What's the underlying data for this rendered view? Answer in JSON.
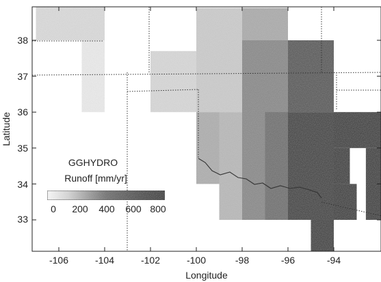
{
  "map": {
    "title": "GGHYDRO",
    "legend_title": "Runoff [mm/yr]",
    "legend_ticks": [
      "0",
      "200",
      "400",
      "600",
      "800"
    ],
    "xlabel": "Longitude",
    "ylabel": "Latitude",
    "x_ticks": [
      "-106",
      "-104",
      "-102",
      "-100",
      "-98",
      "-96",
      "-94"
    ],
    "y_ticks": [
      "33",
      "34",
      "35",
      "36",
      "37",
      "38"
    ],
    "lon_range": [
      -107,
      -91.8
    ],
    "lat_range": [
      32.1,
      38.9
    ],
    "runoff_range_mm_per_yr": [
      0,
      800
    ],
    "colors": {
      "low": "#ffffff",
      "high": "#1a1a1a"
    }
  },
  "chart_data": {
    "type": "heatmap",
    "title": "GGHYDRO",
    "xlabel": "Longitude",
    "ylabel": "Latitude",
    "colorbar_label": "Runoff [mm/yr]",
    "xlim": [
      -107,
      -91.8
    ],
    "ylim": [
      32.1,
      38.9
    ],
    "clim": [
      0,
      800
    ],
    "cells": [
      {
        "lon": [
          -107,
          -104
        ],
        "lat": [
          38,
          39
        ],
        "runoff": 120
      },
      {
        "lon": [
          -105,
          -104
        ],
        "lat": [
          36,
          38
        ],
        "runoff": 60
      },
      {
        "lon": [
          -102,
          -100
        ],
        "lat": [
          36,
          37.7
        ],
        "runoff": 130
      },
      {
        "lon": [
          -100,
          -98
        ],
        "lat": [
          36,
          38.9
        ],
        "runoff": 170
      },
      {
        "lon": [
          -98,
          -96
        ],
        "lat": [
          38,
          38.9
        ],
        "runoff": 290
      },
      {
        "lon": [
          -100,
          -99
        ],
        "lat": [
          34,
          36
        ],
        "runoff": 280
      },
      {
        "lon": [
          -99,
          -98
        ],
        "lat": [
          33,
          36
        ],
        "runoff": 240
      },
      {
        "lon": [
          -98,
          -96
        ],
        "lat": [
          33,
          38
        ],
        "runoff": 420
      },
      {
        "lon": [
          -96,
          -94
        ],
        "lat": [
          36,
          38
        ],
        "runoff": 620
      },
      {
        "lon": [
          -97,
          -96
        ],
        "lat": [
          33,
          36
        ],
        "runoff": 520
      },
      {
        "lon": [
          -96,
          -94
        ],
        "lat": [
          33,
          36
        ],
        "runoff": 740
      },
      {
        "lon": [
          -95,
          -94
        ],
        "lat": [
          32.1,
          33
        ],
        "runoff": 760
      },
      {
        "lon": [
          -94,
          -93
        ],
        "lat": [
          33,
          34
        ],
        "runoff": 770
      },
      {
        "lon": [
          -94,
          -91.8
        ],
        "lat": [
          35,
          36
        ],
        "runoff": 780
      },
      {
        "lon": [
          -92.6,
          -91.8
        ],
        "lat": [
          33,
          35
        ],
        "runoff": 780
      },
      {
        "lon": [
          -94,
          -93.3
        ],
        "lat": [
          34,
          35
        ],
        "runoff": 780
      }
    ]
  }
}
